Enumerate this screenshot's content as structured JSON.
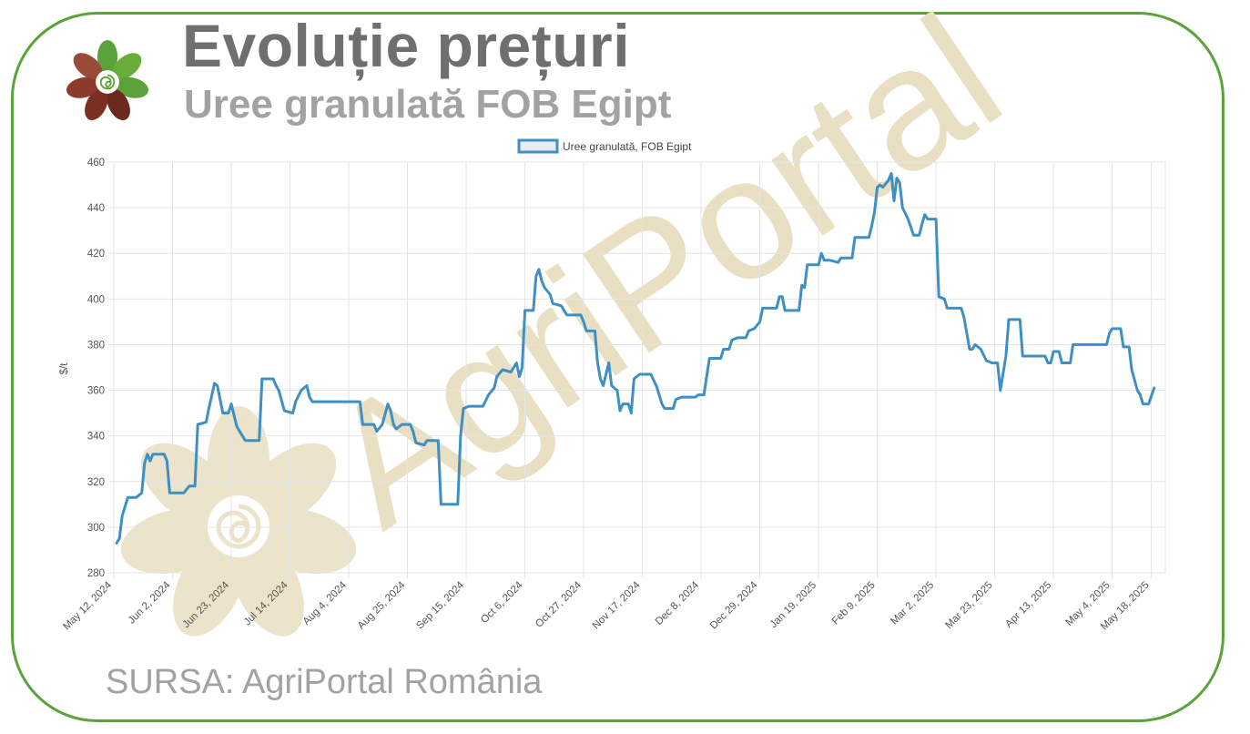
{
  "header": {
    "title": "Evoluție prețuri",
    "subtitle": "Uree granulată FOB Egipt"
  },
  "footer": {
    "source": "SURSA: AgriPortal România"
  },
  "watermark": {
    "text": "AgriPortal"
  },
  "colors": {
    "frame": "#5aa33a",
    "series": "#3d8fc4",
    "watermark": "#e9dfc3"
  },
  "chart_data": {
    "type": "line",
    "legend_position": "top-center",
    "grid": true,
    "ylabel": "$/t",
    "ylim": [
      280,
      460
    ],
    "yticks": [
      280,
      300,
      320,
      340,
      360,
      380,
      400,
      420,
      440,
      460
    ],
    "xlim": [
      "2024-05-12",
      "2025-05-23"
    ],
    "xticks": [
      "May 12, 2024",
      "Jun 2, 2024",
      "Jun 23, 2024",
      "Jul 14, 2024",
      "Aug 4, 2024",
      "Aug 25, 2024",
      "Sep 15, 2024",
      "Oct 6, 2024",
      "Oct 27, 2024",
      "Nov 17, 2024",
      "Dec 8, 2024",
      "Dec 29, 2024",
      "Jan 19, 2025",
      "Feb 9, 2025",
      "Mar 2, 2025",
      "Mar 23, 2025",
      "Apr 13, 2025",
      "May 4, 2025",
      "May 18, 2025"
    ],
    "series": [
      {
        "name": "Uree granulată, FOB Egipt",
        "points": [
          [
            "2024-05-13",
            293
          ],
          [
            "2024-05-14",
            295
          ],
          [
            "2024-05-15",
            305
          ],
          [
            "2024-05-17",
            313
          ],
          [
            "2024-05-20",
            313
          ],
          [
            "2024-05-22",
            315
          ],
          [
            "2024-05-23",
            328
          ],
          [
            "2024-05-24",
            332
          ],
          [
            "2024-05-25",
            329
          ],
          [
            "2024-05-26",
            332
          ],
          [
            "2024-05-30",
            332
          ],
          [
            "2024-05-31",
            329
          ],
          [
            "2024-06-01",
            315
          ],
          [
            "2024-06-06",
            315
          ],
          [
            "2024-06-08",
            318
          ],
          [
            "2024-06-10",
            318
          ],
          [
            "2024-06-11",
            345
          ],
          [
            "2024-06-14",
            346
          ],
          [
            "2024-06-15",
            352
          ],
          [
            "2024-06-17",
            363
          ],
          [
            "2024-06-18",
            362
          ],
          [
            "2024-06-20",
            350
          ],
          [
            "2024-06-22",
            350
          ],
          [
            "2024-06-23",
            354
          ],
          [
            "2024-06-25",
            344
          ],
          [
            "2024-06-27",
            340
          ],
          [
            "2024-06-28",
            338
          ],
          [
            "2024-07-03",
            338
          ],
          [
            "2024-07-04",
            365
          ],
          [
            "2024-07-08",
            365
          ],
          [
            "2024-07-09",
            362
          ],
          [
            "2024-07-10",
            360
          ],
          [
            "2024-07-12",
            351
          ],
          [
            "2024-07-15",
            350
          ],
          [
            "2024-07-16",
            355
          ],
          [
            "2024-07-18",
            360
          ],
          [
            "2024-07-20",
            362
          ],
          [
            "2024-07-21",
            357
          ],
          [
            "2024-07-22",
            355
          ],
          [
            "2024-08-08",
            355
          ],
          [
            "2024-08-09",
            345
          ],
          [
            "2024-08-13",
            345
          ],
          [
            "2024-08-14",
            342
          ],
          [
            "2024-08-16",
            345
          ],
          [
            "2024-08-18",
            354
          ],
          [
            "2024-08-19",
            351
          ],
          [
            "2024-08-20",
            345
          ],
          [
            "2024-08-21",
            343
          ],
          [
            "2024-08-23",
            345
          ],
          [
            "2024-08-26",
            345
          ],
          [
            "2024-08-27",
            342
          ],
          [
            "2024-08-28",
            337
          ],
          [
            "2024-08-31",
            336
          ],
          [
            "2024-09-01",
            338
          ],
          [
            "2024-09-05",
            338
          ],
          [
            "2024-09-06",
            310
          ],
          [
            "2024-09-12",
            310
          ],
          [
            "2024-09-13",
            340
          ],
          [
            "2024-09-14",
            352
          ],
          [
            "2024-09-16",
            353
          ],
          [
            "2024-09-21",
            353
          ],
          [
            "2024-09-23",
            358
          ],
          [
            "2024-09-25",
            361
          ],
          [
            "2024-09-26",
            366
          ],
          [
            "2024-09-28",
            369
          ],
          [
            "2024-10-01",
            368
          ],
          [
            "2024-10-03",
            372
          ],
          [
            "2024-10-04",
            366
          ],
          [
            "2024-10-05",
            370
          ],
          [
            "2024-10-06",
            395
          ],
          [
            "2024-10-09",
            395
          ],
          [
            "2024-10-10",
            410
          ],
          [
            "2024-10-11",
            413
          ],
          [
            "2024-10-12",
            408
          ],
          [
            "2024-10-13",
            405
          ],
          [
            "2024-10-15",
            402
          ],
          [
            "2024-10-16",
            398
          ],
          [
            "2024-10-19",
            397
          ],
          [
            "2024-10-21",
            393
          ],
          [
            "2024-10-26",
            393
          ],
          [
            "2024-10-27",
            390
          ],
          [
            "2024-10-28",
            386
          ],
          [
            "2024-10-31",
            386
          ],
          [
            "2024-11-01",
            372
          ],
          [
            "2024-11-02",
            365
          ],
          [
            "2024-11-03",
            362
          ],
          [
            "2024-11-05",
            372
          ],
          [
            "2024-11-06",
            362
          ],
          [
            "2024-11-08",
            360
          ],
          [
            "2024-11-09",
            351
          ],
          [
            "2024-11-10",
            354
          ],
          [
            "2024-11-12",
            354
          ],
          [
            "2024-11-13",
            350
          ],
          [
            "2024-11-14",
            365
          ],
          [
            "2024-11-16",
            367
          ],
          [
            "2024-11-20",
            367
          ],
          [
            "2024-11-22",
            362
          ],
          [
            "2024-11-24",
            354
          ],
          [
            "2024-11-25",
            352
          ],
          [
            "2024-11-28",
            352
          ],
          [
            "2024-11-29",
            356
          ],
          [
            "2024-12-01",
            357
          ],
          [
            "2024-12-06",
            357
          ],
          [
            "2024-12-07",
            358
          ],
          [
            "2024-12-09",
            358
          ],
          [
            "2024-12-10",
            366
          ],
          [
            "2024-12-11",
            374
          ],
          [
            "2024-12-15",
            374
          ],
          [
            "2024-12-16",
            378
          ],
          [
            "2024-12-18",
            378
          ],
          [
            "2024-12-19",
            382
          ],
          [
            "2024-12-21",
            383
          ],
          [
            "2024-12-24",
            383
          ],
          [
            "2024-12-25",
            386
          ],
          [
            "2024-12-27",
            387
          ],
          [
            "2024-12-29",
            390
          ],
          [
            "2024-12-30",
            396
          ],
          [
            "2025-01-04",
            396
          ],
          [
            "2025-01-05",
            401
          ],
          [
            "2025-01-06",
            401
          ],
          [
            "2025-01-07",
            395
          ],
          [
            "2025-01-12",
            395
          ],
          [
            "2025-01-13",
            406
          ],
          [
            "2025-01-14",
            405
          ],
          [
            "2025-01-15",
            415
          ],
          [
            "2025-01-19",
            415
          ],
          [
            "2025-01-20",
            420
          ],
          [
            "2025-01-21",
            417
          ],
          [
            "2025-01-23",
            417
          ],
          [
            "2025-01-26",
            416
          ],
          [
            "2025-01-27",
            418
          ],
          [
            "2025-01-31",
            418
          ],
          [
            "2025-02-01",
            427
          ],
          [
            "2025-02-06",
            427
          ],
          [
            "2025-02-07",
            432
          ],
          [
            "2025-02-08",
            438
          ],
          [
            "2025-02-09",
            449
          ],
          [
            "2025-02-10",
            450
          ],
          [
            "2025-02-11",
            449
          ],
          [
            "2025-02-13",
            452
          ],
          [
            "2025-02-14",
            455
          ],
          [
            "2025-02-15",
            443
          ],
          [
            "2025-02-16",
            453
          ],
          [
            "2025-02-17",
            451
          ],
          [
            "2025-02-18",
            440
          ],
          [
            "2025-02-20",
            435
          ],
          [
            "2025-02-22",
            428
          ],
          [
            "2025-02-24",
            428
          ],
          [
            "2025-02-25",
            433
          ],
          [
            "2025-02-26",
            437
          ],
          [
            "2025-02-27",
            435
          ],
          [
            "2025-03-02",
            435
          ],
          [
            "2025-03-03",
            401
          ],
          [
            "2025-03-05",
            400
          ],
          [
            "2025-03-06",
            396
          ],
          [
            "2025-03-11",
            396
          ],
          [
            "2025-03-12",
            392
          ],
          [
            "2025-03-13",
            385
          ],
          [
            "2025-03-14",
            378
          ],
          [
            "2025-03-15",
            378
          ],
          [
            "2025-03-16",
            380
          ],
          [
            "2025-03-18",
            378
          ],
          [
            "2025-03-20",
            373
          ],
          [
            "2025-03-22",
            372
          ],
          [
            "2025-03-24",
            372
          ],
          [
            "2025-03-25",
            360
          ],
          [
            "2025-03-27",
            375
          ],
          [
            "2025-03-28",
            391
          ],
          [
            "2025-04-01",
            391
          ],
          [
            "2025-04-02",
            375
          ],
          [
            "2025-04-10",
            375
          ],
          [
            "2025-04-11",
            372
          ],
          [
            "2025-04-12",
            372
          ],
          [
            "2025-04-13",
            377
          ],
          [
            "2025-04-15",
            377
          ],
          [
            "2025-04-16",
            372
          ],
          [
            "2025-04-19",
            372
          ],
          [
            "2025-04-20",
            380
          ],
          [
            "2025-05-02",
            380
          ],
          [
            "2025-05-03",
            385
          ],
          [
            "2025-05-04",
            387
          ],
          [
            "2025-05-07",
            387
          ],
          [
            "2025-05-08",
            379
          ],
          [
            "2025-05-10",
            379
          ],
          [
            "2025-05-11",
            369
          ],
          [
            "2025-05-13",
            360
          ],
          [
            "2025-05-14",
            358
          ],
          [
            "2025-05-15",
            354
          ],
          [
            "2025-05-17",
            354
          ],
          [
            "2025-05-19",
            361
          ]
        ]
      }
    ]
  }
}
